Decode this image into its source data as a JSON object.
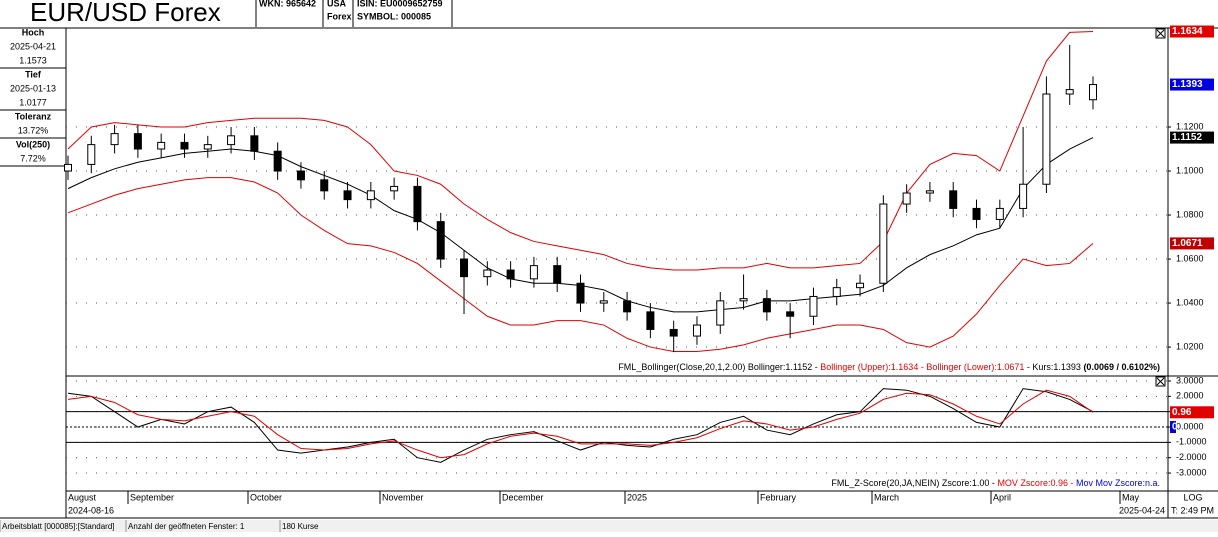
{
  "header": {
    "title": "EUR/USD Forex",
    "wkn": "WKN: 965642",
    "country": "USA",
    "market": "Forex",
    "isin": "ISIN: EU0009652759",
    "symbol": "SYMBOL: 000085"
  },
  "sidebar": [
    {
      "label": "Hoch",
      "lines": [
        "2025-04-21",
        "1.1573"
      ]
    },
    {
      "label": "Tief",
      "lines": [
        "2025-01-13",
        "1.0177"
      ]
    },
    {
      "label": "Toleranz",
      "lines": [
        "13.72%"
      ]
    },
    {
      "label": "Vol(250)",
      "lines": [
        "7.72%"
      ]
    }
  ],
  "chart_data": [
    {
      "type": "candlestick",
      "currency": "US-$",
      "open": [
        1.1,
        1.103,
        1.112,
        1.117,
        1.11,
        1.113,
        1.11,
        1.112,
        1.116,
        1.109,
        1.1,
        1.096,
        1.091,
        1.087,
        1.091,
        1.093,
        1.077,
        1.06,
        1.052,
        1.055,
        1.051,
        1.057,
        1.049,
        1.04,
        1.041,
        1.036,
        1.028,
        1.025,
        1.03,
        1.041,
        1.042,
        1.036,
        1.034,
        1.043,
        1.047,
        1.049,
        1.085,
        1.09,
        1.091,
        1.083,
        1.078,
        1.083,
        1.094,
        1.135,
        1.1324
      ],
      "high": [
        1.107,
        1.116,
        1.121,
        1.121,
        1.117,
        1.117,
        1.116,
        1.12,
        1.12,
        1.113,
        1.104,
        1.1,
        1.095,
        1.095,
        1.097,
        1.097,
        1.081,
        1.064,
        1.059,
        1.059,
        1.061,
        1.061,
        1.053,
        1.045,
        1.045,
        1.04,
        1.032,
        1.034,
        1.045,
        1.053,
        1.046,
        1.04,
        1.047,
        1.051,
        1.053,
        1.089,
        1.094,
        1.095,
        1.095,
        1.087,
        1.087,
        1.12,
        1.143,
        1.1573,
        1.143
      ],
      "low": [
        1.096,
        1.099,
        1.108,
        1.106,
        1.106,
        1.106,
        1.106,
        1.108,
        1.105,
        1.096,
        1.092,
        1.087,
        1.083,
        1.083,
        1.087,
        1.073,
        1.056,
        1.035,
        1.048,
        1.047,
        1.047,
        1.045,
        1.036,
        1.036,
        1.032,
        1.024,
        1.0177,
        1.021,
        1.026,
        1.037,
        1.032,
        1.024,
        1.03,
        1.039,
        1.043,
        1.045,
        1.081,
        1.086,
        1.079,
        1.074,
        1.074,
        1.079,
        1.09,
        1.13,
        1.128
      ],
      "close": [
        1.103,
        1.112,
        1.117,
        1.11,
        1.113,
        1.11,
        1.112,
        1.116,
        1.109,
        1.1,
        1.096,
        1.091,
        1.087,
        1.091,
        1.093,
        1.077,
        1.06,
        1.052,
        1.055,
        1.051,
        1.057,
        1.049,
        1.04,
        1.041,
        1.036,
        1.028,
        1.025,
        1.03,
        1.041,
        1.042,
        1.036,
        1.034,
        1.043,
        1.047,
        1.049,
        1.085,
        1.09,
        1.091,
        1.083,
        1.078,
        1.083,
        1.094,
        1.135,
        1.137,
        1.1393
      ],
      "series": [
        {
          "color": "#000000",
          "values": [
            1.092,
            1.097,
            1.101,
            1.104,
            1.106,
            1.108,
            1.109,
            1.11,
            1.109,
            1.107,
            1.102,
            1.098,
            1.094,
            1.089,
            1.082,
            1.078,
            1.072,
            1.064,
            1.056,
            1.051,
            1.049,
            1.049,
            1.048,
            1.046,
            1.041,
            1.038,
            1.036,
            1.036,
            1.037,
            1.038,
            1.041,
            1.041,
            1.042,
            1.043,
            1.044,
            1.048,
            1.056,
            1.062,
            1.066,
            1.071,
            1.074,
            1.092,
            1.103,
            1.11,
            1.1152
          ]
        },
        {
          "color": "#e00000",
          "values": [
            1.11,
            1.12,
            1.122,
            1.121,
            1.12,
            1.12,
            1.122,
            1.123,
            1.124,
            1.124,
            1.124,
            1.123,
            1.12,
            1.112,
            1.1,
            1.098,
            1.094,
            1.085,
            1.078,
            1.072,
            1.068,
            1.066,
            1.064,
            1.062,
            1.058,
            1.056,
            1.055,
            1.055,
            1.056,
            1.056,
            1.058,
            1.056,
            1.056,
            1.057,
            1.058,
            1.068,
            1.09,
            1.103,
            1.108,
            1.107,
            1.1,
            1.125,
            1.15,
            1.163,
            1.1634
          ]
        },
        {
          "color": "#e00000",
          "values": [
            1.081,
            1.085,
            1.089,
            1.092,
            1.094,
            1.096,
            1.097,
            1.097,
            1.095,
            1.09,
            1.08,
            1.073,
            1.067,
            1.066,
            1.063,
            1.058,
            1.05,
            1.042,
            1.034,
            1.03,
            1.03,
            1.032,
            1.032,
            1.03,
            1.024,
            1.02,
            1.018,
            1.018,
            1.019,
            1.021,
            1.024,
            1.026,
            1.028,
            1.03,
            1.03,
            1.028,
            1.022,
            1.02,
            1.025,
            1.035,
            1.048,
            1.06,
            1.057,
            1.058,
            1.0671
          ]
        }
      ],
      "ylim": [
        1.0073,
        1.165
      ],
      "yticks": [
        {
          "value": 1.02,
          "label": "1.0200"
        },
        {
          "value": 1.04,
          "label": "1.0400"
        },
        {
          "value": 1.06,
          "label": "1.0600"
        },
        {
          "value": 1.08,
          "label": "1.0800"
        },
        {
          "value": 1.1,
          "label": "1.1000"
        },
        {
          "value": 1.12,
          "label": "1.1200"
        }
      ],
      "markers": [
        {
          "value": 1.1634,
          "color": "#e00000"
        },
        {
          "value": 1.1393,
          "color": "#0000e0"
        },
        {
          "value": 1.1152,
          "color": "#000000"
        },
        {
          "value": 1.0671,
          "color": "#c00000"
        }
      ],
      "legend": [
        {
          "text": "FML_Bollinger(Close,20,1,2.00) Bollinger:1.1152 - ",
          "color": "#000000"
        },
        {
          "text": "Bollinger (Upper):1.1634 - ",
          "color": "#e00000"
        },
        {
          "text": "Bollinger (Lower):1.0671",
          "color": "#e00000"
        },
        {
          "text": " - Kurs:1.1393 ",
          "color": "#000000"
        },
        {
          "text": "(0.0069 / 0.6102%)",
          "color": "#000000",
          "bold": true
        }
      ],
      "grid": true
    },
    {
      "type": "line",
      "series": [
        {
          "color": "#000000",
          "values": [
            2.2,
            2.0,
            1.0,
            0.0,
            0.5,
            0.2,
            1.0,
            1.3,
            0.3,
            -1.5,
            -1.7,
            -1.5,
            -1.3,
            -1.0,
            -0.8,
            -2.0,
            -2.3,
            -1.5,
            -0.8,
            -0.5,
            -0.3,
            -0.9,
            -1.5,
            -1.0,
            -1.2,
            -1.3,
            -0.8,
            -0.5,
            0.3,
            0.7,
            -0.2,
            -0.5,
            0.2,
            0.8,
            1.0,
            2.5,
            2.4,
            2.0,
            1.2,
            0.3,
            0.0,
            2.5,
            2.3,
            1.8,
            1.0
          ]
        },
        {
          "color": "#e00000",
          "values": [
            1.8,
            2.0,
            1.6,
            0.8,
            0.5,
            0.4,
            0.7,
            1.0,
            0.7,
            -0.5,
            -1.4,
            -1.5,
            -1.4,
            -1.1,
            -0.9,
            -1.5,
            -2.0,
            -1.8,
            -1.1,
            -0.6,
            -0.4,
            -0.6,
            -1.1,
            -1.1,
            -1.1,
            -1.2,
            -1.0,
            -0.7,
            -0.1,
            0.4,
            0.2,
            -0.2,
            0.0,
            0.5,
            0.9,
            1.8,
            2.2,
            2.1,
            1.5,
            0.7,
            0.2,
            1.5,
            2.4,
            2.0,
            0.96
          ]
        }
      ],
      "ylim": [
        -4.17,
        3.26
      ],
      "yticks": [
        {
          "value": 3,
          "label": "3.0000"
        },
        {
          "value": 2,
          "label": "2.0000"
        },
        {
          "value": 1,
          "label": "1.0000"
        },
        {
          "value": 0,
          "label": "0.0000"
        },
        {
          "value": -1,
          "label": "-1.0000"
        },
        {
          "value": -2,
          "label": "-2.0000"
        },
        {
          "value": -3,
          "label": "-3.0000"
        }
      ],
      "hlines": [
        1,
        -1
      ],
      "markers": [
        {
          "value": 0.96,
          "color": "#e00000"
        },
        {
          "value": 0,
          "color": "#0000e0"
        }
      ],
      "legend": [
        {
          "text": "FML_Z-Score(20,JA,NEIN) Zscore:1.00 - ",
          "color": "#000000"
        },
        {
          "text": "MOV Zscore:0.96 - ",
          "color": "#e00000"
        },
        {
          "text": "Mov Mov Zscore:n.a.",
          "color": "#0000e0"
        }
      ],
      "grid": true
    }
  ],
  "x_axis": {
    "months": [
      "August",
      "September",
      "October",
      "November",
      "December",
      "2025",
      "February",
      "March",
      "April",
      "May"
    ],
    "start": "2024-08-16",
    "end": "2025-04-24",
    "scale": "LOG",
    "time": "T: 2:49 PM"
  },
  "status_bar": [
    "Arbeitsblatt [000085]:[Standard]",
    "Anzahl der geöffneten Fenster: 1",
    "180 Kurse"
  ]
}
